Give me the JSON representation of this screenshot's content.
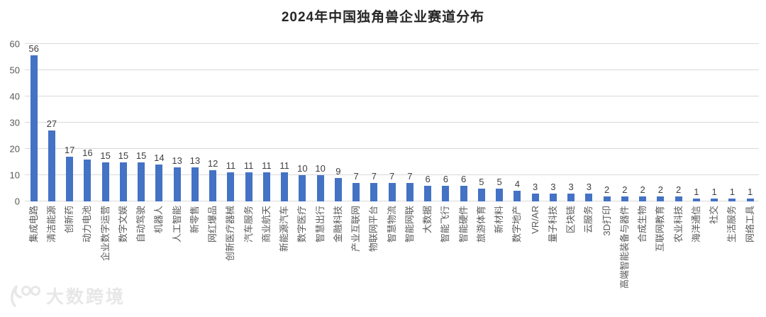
{
  "watermark": {
    "text": "大数跨境",
    "logo": "swoosh-100-logo"
  },
  "colors": {
    "bar": "#4472c4",
    "gridline": "#d9d9d9",
    "axis_label": "#595959",
    "value_label": "#3f3f3f",
    "title": "#262626",
    "watermark": "#e7e7e7"
  },
  "chart_data": {
    "type": "bar",
    "title": "2024年中国独角兽企业赛道分布",
    "xlabel": "",
    "ylabel": "",
    "ylim": [
      0,
      60
    ],
    "yticks": [
      0,
      10,
      20,
      30,
      40,
      50,
      60
    ],
    "grid": true,
    "value_labels": true,
    "bar_color": "#4472c4",
    "categories": [
      "集成电路",
      "清洁能源",
      "创新药",
      "动力电池",
      "企业数字运营",
      "数字文娱",
      "自动驾驶",
      "机器人",
      "人工智能",
      "新零售",
      "网红爆品",
      "创新医疗器械",
      "汽车服务",
      "商业航天",
      "新能源汽车",
      "数字医疗",
      "智慧出行",
      "金融科技",
      "产业互联网",
      "物联网平台",
      "智慧物流",
      "智能网联",
      "大数据",
      "智能飞行",
      "智能硬件",
      "旅游体育",
      "新材料",
      "数字地产",
      "VR/AR",
      "量子科技",
      "区块链",
      "云服务",
      "3D打印",
      "高端智能装备与器件",
      "合成生物",
      "互联网教育",
      "农业科技",
      "海洋通信",
      "社交",
      "生活服务",
      "网络工具"
    ],
    "values": [
      56,
      27,
      17,
      16,
      15,
      15,
      15,
      14,
      13,
      13,
      12,
      11,
      11,
      11,
      11,
      10,
      10,
      9,
      7,
      7,
      7,
      7,
      6,
      6,
      6,
      5,
      5,
      4,
      3,
      3,
      3,
      3,
      2,
      2,
      2,
      2,
      2,
      1,
      1,
      1,
      1
    ]
  }
}
